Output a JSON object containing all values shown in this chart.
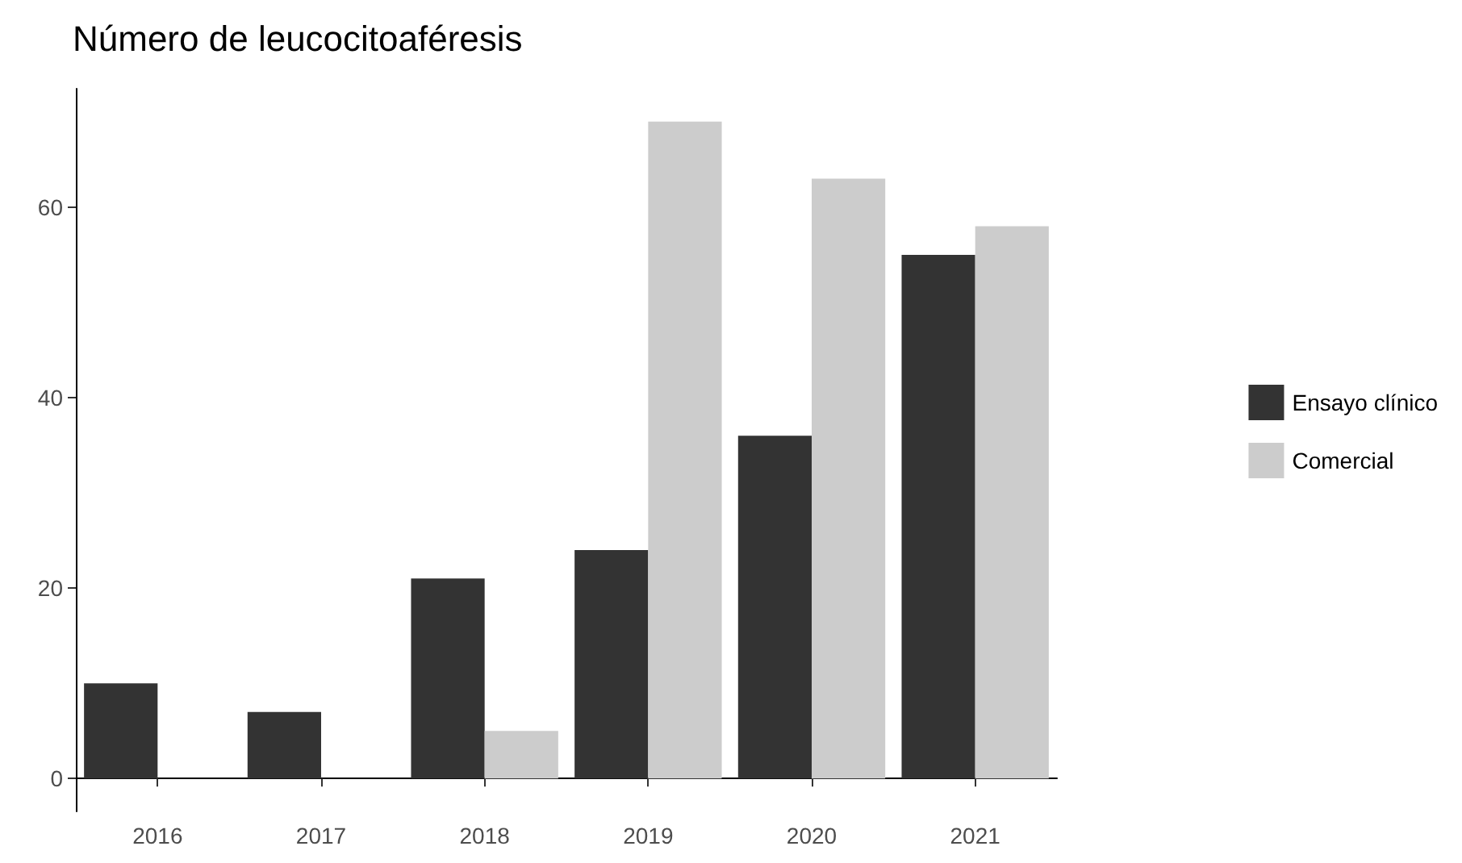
{
  "chart_data": {
    "type": "bar",
    "title": "Número de leucocitoaféresis",
    "categories": [
      "2016",
      "2017",
      "2018",
      "2019",
      "2020",
      "2021"
    ],
    "series": [
      {
        "name": "Ensayo clínico",
        "color": "#333333",
        "values": [
          10,
          7,
          21,
          24,
          36,
          55
        ]
      },
      {
        "name": "Comercial",
        "color": "#cccccc",
        "values": [
          0,
          0,
          5,
          69,
          63,
          58
        ]
      }
    ],
    "ylim": [
      -3.45,
      72.45
    ],
    "yticks": [
      0,
      20,
      40,
      60
    ],
    "grid": false,
    "legend": "right"
  }
}
